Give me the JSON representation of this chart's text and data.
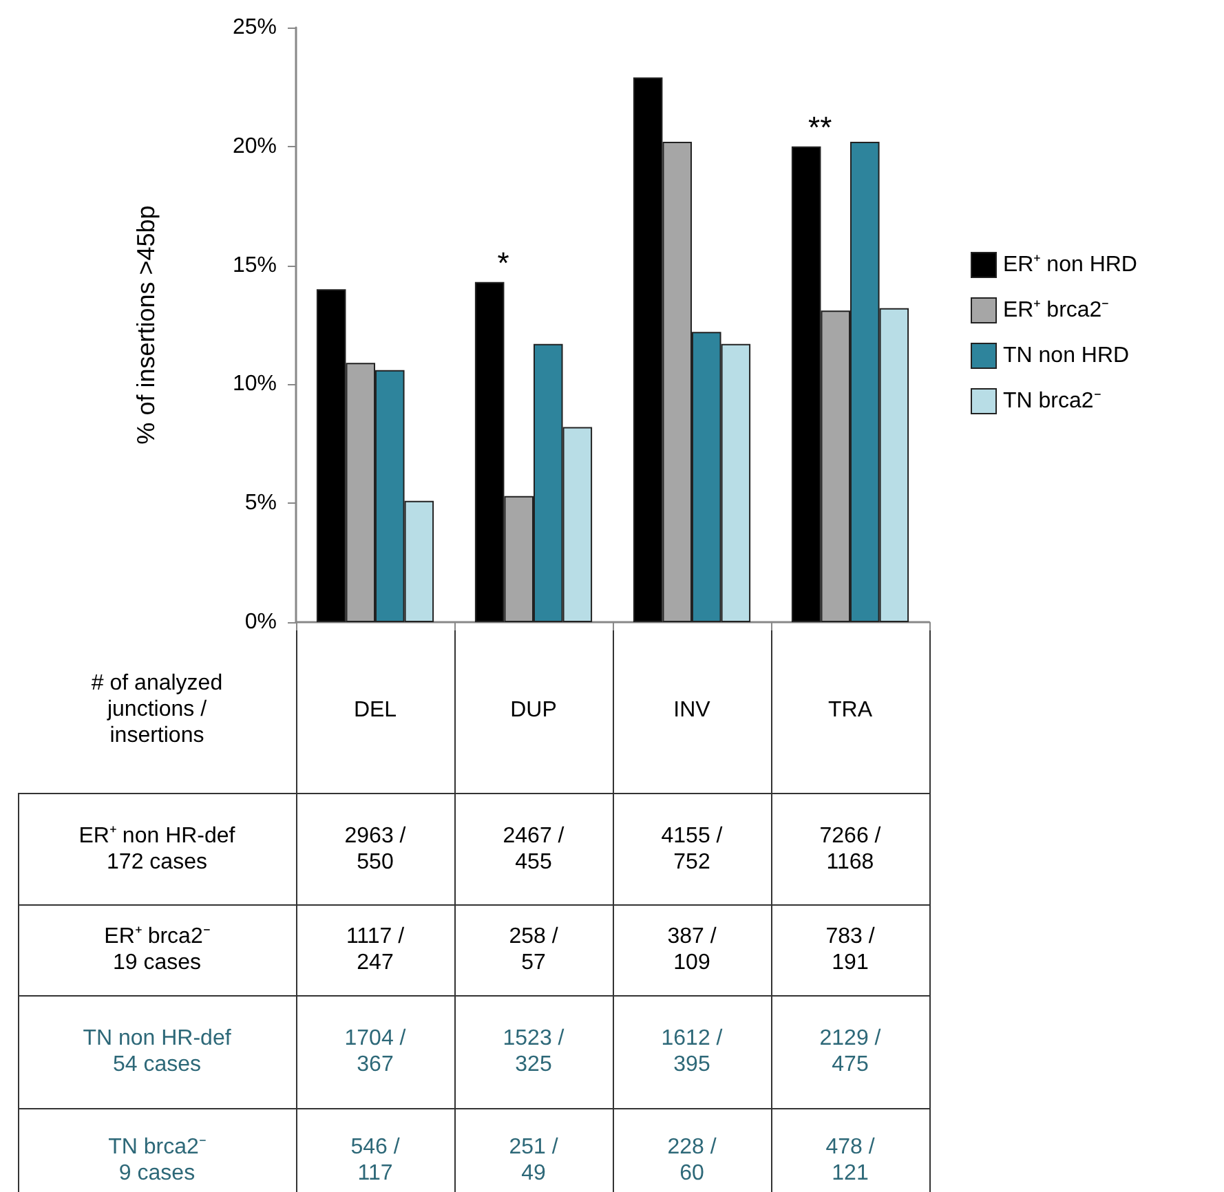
{
  "chart_data": {
    "type": "bar",
    "ylabel": "% of insertions >45bp",
    "categories": [
      "DEL",
      "DUP",
      "INV",
      "TRA"
    ],
    "series": [
      {
        "name": "ER⁺ non HRD",
        "color": "#000000",
        "values": [
          14.0,
          14.3,
          22.9,
          20.0
        ]
      },
      {
        "name": "ER⁺ brca2⁻",
        "color": "#a6a6a6",
        "values": [
          10.9,
          5.3,
          20.2,
          13.1
        ]
      },
      {
        "name": "TN non HRD",
        "color": "#2e849c",
        "values": [
          10.6,
          11.7,
          12.2,
          20.2
        ]
      },
      {
        "name": "TN brca2⁻",
        "color": "#b8dde6",
        "values": [
          5.1,
          8.2,
          11.7,
          13.2
        ]
      }
    ],
    "ylim": [
      0,
      25
    ],
    "yticks": [
      {
        "value": 0,
        "label": "0%"
      },
      {
        "value": 5,
        "label": "5%"
      },
      {
        "value": 10,
        "label": "10%"
      },
      {
        "value": 15,
        "label": "15%"
      },
      {
        "value": 20,
        "label": "20%"
      },
      {
        "value": 25,
        "label": "25%"
      }
    ],
    "grid": false,
    "legend": "right",
    "annotations": [
      "*",
      "**",
      "# of analyzed\njunctions /\ninsertions",
      "ER⁺ non HR-def\n172 cases",
      "2963 /\n550",
      "2467 /\n455",
      "4155 /\n752",
      "7266 /\n1168",
      "ER⁺ brca2⁻\n19 cases",
      "1117 /\n247",
      "258 /\n57",
      "387 /\n109",
      "783 /\n191",
      "TN non HR-def\n54 cases",
      "1704 /\n367",
      "1523 /\n325",
      "1612 /\n395",
      "2129 /\n475",
      "TN brca2⁻\n9 cases",
      "546 /\n117",
      "251 /\n49",
      "228 /\n60",
      "478 /\n121"
    ]
  }
}
